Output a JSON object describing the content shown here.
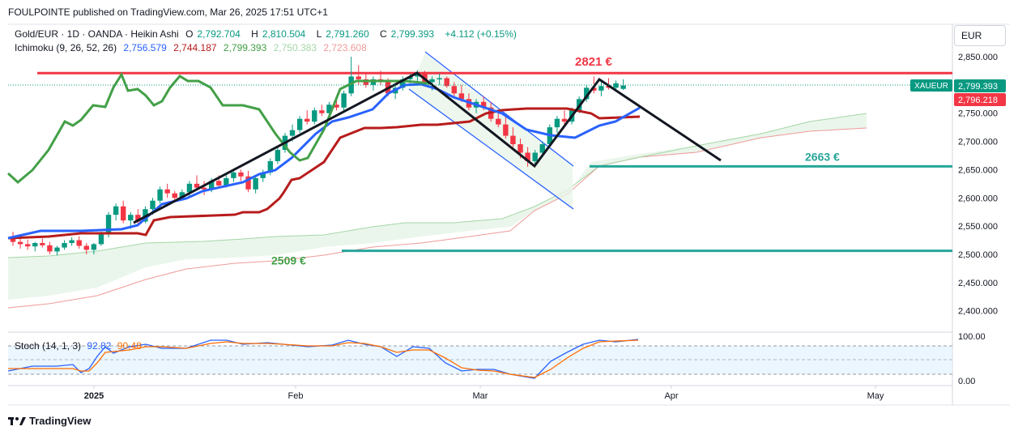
{
  "header": {
    "publisher": "FOULPOINTE published on TradingView.com, Mar 26, 2025 17:51 UTC+1"
  },
  "legend": {
    "symbol": "Gold/EUR · 1D · OANDA · Heikin Ashi",
    "o_label": "O",
    "o": "2,792.704",
    "h_label": "H",
    "h": "2,810.504",
    "l_label": "L",
    "l": "2,791.260",
    "c_label": "C",
    "c": "2,799.393",
    "change": "+4.112 (+0.15%)",
    "ichimoku_label": "Ichimoku (9, 26, 52, 26)",
    "ichimoku_values": [
      "2,756.579",
      "2,744.187",
      "2,799.393",
      "2,750.383",
      "2,723.608"
    ]
  },
  "stoch_legend": {
    "label": "Stoch (14, 1, 3)",
    "k": "92.82",
    "d": "90.48"
  },
  "currency": "EUR",
  "footer": {
    "brand": "TradingView"
  },
  "colors": {
    "up": "#089981",
    "down": "#f23645",
    "tenkan": "#2962ff",
    "kijun": "#b71c1c",
    "chikou": "#43a047",
    "cloud_fill": "#e8f5e9",
    "line_red": "#f23645",
    "line_teal": "#26a69a"
  },
  "chart_data": {
    "type": "candlestick",
    "price_axis": {
      "ticks": [
        "2,850.000",
        "2,800.000",
        "2,750.000",
        "2,700.000",
        "2,650.000",
        "2,600.000",
        "2,550.000",
        "2,500.000",
        "2,450.000",
        "2,400.000"
      ]
    },
    "time_axis": {
      "ticks": [
        "2025",
        "Feb",
        "Mar",
        "Apr",
        "May"
      ]
    },
    "ylim": [
      2380,
      2865
    ],
    "levels": [
      {
        "label": "2821 €",
        "value": 2821,
        "color": "#f23645"
      },
      {
        "label": "2663 €",
        "value": 2663,
        "color": "#089981"
      },
      {
        "label": "2509 €",
        "value": 2509,
        "color": "#43a047"
      }
    ],
    "price_tags": [
      {
        "label": "XAUEUR",
        "value": "2,799.393",
        "color": "#089981"
      },
      {
        "value": "2,796.218",
        "color": "#f23645"
      }
    ],
    "candles": [
      [
        2530,
        2540,
        2515,
        2522
      ],
      [
        2522,
        2532,
        2510,
        2518
      ],
      [
        2518,
        2526,
        2508,
        2514
      ],
      [
        2514,
        2522,
        2505,
        2520
      ],
      [
        2520,
        2528,
        2512,
        2516
      ],
      [
        2516,
        2522,
        2500,
        2505
      ],
      [
        2505,
        2515,
        2498,
        2512
      ],
      [
        2512,
        2525,
        2508,
        2520
      ],
      [
        2520,
        2530,
        2515,
        2525
      ],
      [
        2525,
        2532,
        2510,
        2515
      ],
      [
        2515,
        2520,
        2500,
        2508
      ],
      [
        2508,
        2520,
        2500,
        2518
      ],
      [
        2518,
        2540,
        2515,
        2535
      ],
      [
        2535,
        2575,
        2530,
        2570
      ],
      [
        2570,
        2590,
        2560,
        2585
      ],
      [
        2585,
        2595,
        2555,
        2560
      ],
      [
        2560,
        2575,
        2545,
        2570
      ],
      [
        2570,
        2580,
        2550,
        2558
      ],
      [
        2558,
        2585,
        2555,
        2580
      ],
      [
        2580,
        2600,
        2570,
        2595
      ],
      [
        2595,
        2620,
        2590,
        2615
      ],
      [
        2615,
        2625,
        2600,
        2608
      ],
      [
        2608,
        2612,
        2595,
        2600
      ],
      [
        2600,
        2615,
        2595,
        2610
      ],
      [
        2610,
        2630,
        2600,
        2625
      ],
      [
        2625,
        2640,
        2615,
        2618
      ],
      [
        2618,
        2630,
        2605,
        2615
      ],
      [
        2615,
        2635,
        2610,
        2630
      ],
      [
        2630,
        2640,
        2620,
        2622
      ],
      [
        2622,
        2640,
        2618,
        2635
      ],
      [
        2635,
        2650,
        2628,
        2645
      ],
      [
        2645,
        2650,
        2630,
        2638
      ],
      [
        2638,
        2648,
        2610,
        2615
      ],
      [
        2615,
        2640,
        2608,
        2635
      ],
      [
        2635,
        2650,
        2628,
        2645
      ],
      [
        2645,
        2670,
        2640,
        2665
      ],
      [
        2665,
        2690,
        2660,
        2685
      ],
      [
        2685,
        2715,
        2680,
        2710
      ],
      [
        2710,
        2730,
        2700,
        2720
      ],
      [
        2720,
        2745,
        2715,
        2740
      ],
      [
        2740,
        2755,
        2730,
        2735
      ],
      [
        2735,
        2760,
        2730,
        2755
      ],
      [
        2755,
        2765,
        2745,
        2750
      ],
      [
        2750,
        2770,
        2745,
        2765
      ],
      [
        2765,
        2780,
        2755,
        2760
      ],
      [
        2760,
        2790,
        2755,
        2785
      ],
      [
        2785,
        2850,
        2780,
        2815
      ],
      [
        2815,
        2835,
        2800,
        2810
      ],
      [
        2810,
        2820,
        2795,
        2800
      ],
      [
        2800,
        2815,
        2790,
        2810
      ],
      [
        2810,
        2825,
        2800,
        2805
      ],
      [
        2805,
        2812,
        2780,
        2785
      ],
      [
        2785,
        2800,
        2775,
        2795
      ],
      [
        2795,
        2815,
        2790,
        2810
      ],
      [
        2810,
        2820,
        2800,
        2815
      ],
      [
        2815,
        2826,
        2805,
        2820
      ],
      [
        2820,
        2825,
        2800,
        2805
      ],
      [
        2805,
        2815,
        2790,
        2810
      ],
      [
        2810,
        2820,
        2800,
        2812
      ],
      [
        2812,
        2815,
        2795,
        2798
      ],
      [
        2798,
        2805,
        2780,
        2785
      ],
      [
        2785,
        2800,
        2770,
        2775
      ],
      [
        2775,
        2785,
        2755,
        2760
      ],
      [
        2760,
        2775,
        2750,
        2770
      ],
      [
        2770,
        2780,
        2755,
        2760
      ],
      [
        2760,
        2770,
        2735,
        2740
      ],
      [
        2740,
        2755,
        2725,
        2730
      ],
      [
        2730,
        2745,
        2705,
        2710
      ],
      [
        2710,
        2725,
        2690,
        2695
      ],
      [
        2695,
        2705,
        2670,
        2680
      ],
      [
        2680,
        2690,
        2655,
        2665
      ],
      [
        2665,
        2685,
        2658,
        2680
      ],
      [
        2680,
        2700,
        2675,
        2695
      ],
      [
        2695,
        2730,
        2690,
        2725
      ],
      [
        2725,
        2745,
        2715,
        2740
      ],
      [
        2740,
        2755,
        2730,
        2735
      ],
      [
        2735,
        2760,
        2730,
        2755
      ],
      [
        2755,
        2780,
        2750,
        2775
      ],
      [
        2775,
        2800,
        2770,
        2795
      ],
      [
        2795,
        2815,
        2785,
        2790
      ],
      [
        2790,
        2805,
        2780,
        2798
      ],
      [
        2798,
        2812,
        2792,
        2795
      ],
      [
        2795,
        2808,
        2790,
        2803
      ],
      [
        2793,
        2810,
        2791,
        2799
      ]
    ]
  }
}
